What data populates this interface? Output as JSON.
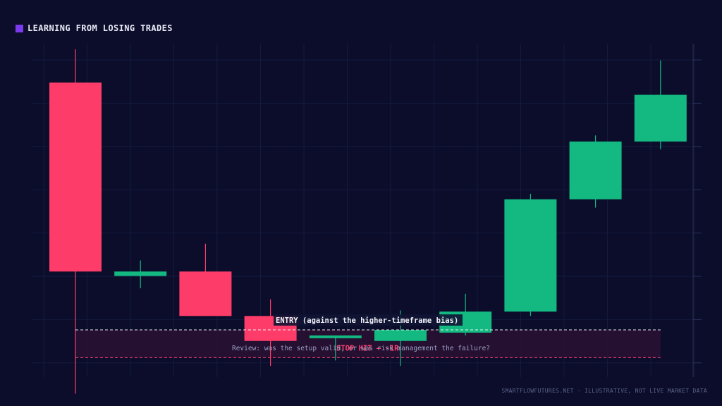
{
  "title": "LEARNING FROM LOSING TRADES",
  "footer": "SMARTFLOWFUTURES.NET · ILLUSTRATIVE, NOT LIVE MARKET DATA",
  "colors": {
    "background": "#0b0d2b",
    "title_square": "#7c3aed",
    "bullish": "#13b981",
    "bearish": "#fe3c6a",
    "entry_line": "#ffffff",
    "stop_line": "#fe3c6a",
    "risk_zone": "#2a1233"
  },
  "chart_data": {
    "type": "candlestick",
    "grid": true,
    "y_axis_side": "right",
    "tick_labels_shown": false,
    "candles": [
      {
        "open": 87,
        "high": 93,
        "low": 31,
        "close": 53
      },
      {
        "open": 52.2,
        "high": 55,
        "low": 50,
        "close": 53
      },
      {
        "open": 53,
        "high": 58,
        "low": 45,
        "close": 45
      },
      {
        "open": 45,
        "high": 48,
        "low": 36,
        "close": 40.5
      },
      {
        "open": 41,
        "high": 41.5,
        "low": 37,
        "close": 41.5
      },
      {
        "open": 40.5,
        "high": 46,
        "low": 36,
        "close": 42.5
      },
      {
        "open": 42,
        "high": 49,
        "low": 41.5,
        "close": 45.8
      },
      {
        "open": 45.8,
        "high": 67,
        "low": 45,
        "close": 66
      },
      {
        "open": 66,
        "high": 77.5,
        "low": 64.5,
        "close": 76.4
      },
      {
        "open": 76.4,
        "high": 91,
        "low": 75,
        "close": 84.8
      }
    ],
    "entry_level": 42.5,
    "stop_level": 37.5,
    "annotations": {
      "entry": "ENTRY (against the higher-timeframe bias)",
      "stop": "STOP HIT — -1R",
      "review": "Review: was the setup valid, or was risk management the failure?"
    },
    "ylim": [
      34,
      94
    ]
  }
}
